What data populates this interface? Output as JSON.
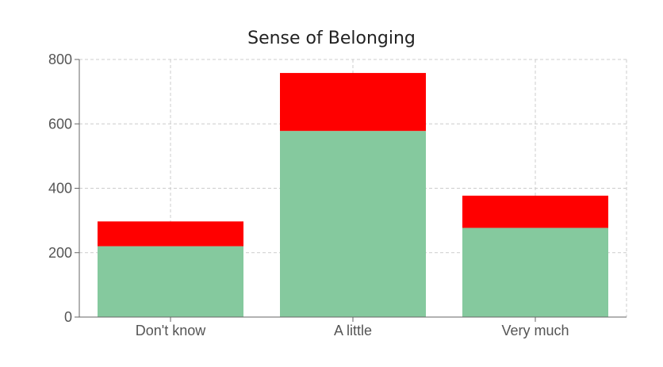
{
  "chart_data": {
    "type": "bar",
    "stacked": true,
    "title": "Sense of Belonging",
    "xlabel": "",
    "ylabel": "",
    "categories": [
      "Don't know",
      "A little",
      "Very much"
    ],
    "series": [
      {
        "values": [
          220,
          578,
          277
        ],
        "color": "#85c99e"
      },
      {
        "values": [
          77,
          180,
          100
        ],
        "color": "#ff0000"
      }
    ],
    "ylim": [
      0,
      800
    ],
    "yticks": [
      0,
      200,
      400,
      600,
      800
    ],
    "grid": true,
    "legend": "none"
  }
}
